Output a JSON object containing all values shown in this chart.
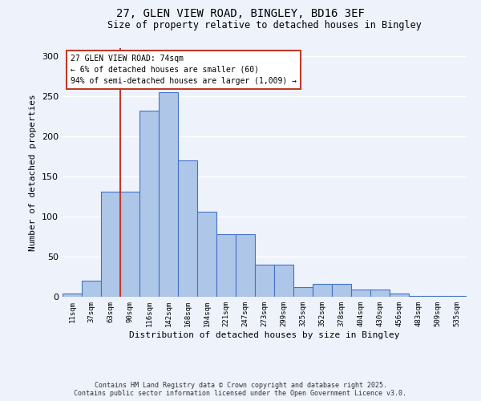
{
  "title_line1": "27, GLEN VIEW ROAD, BINGLEY, BD16 3EF",
  "title_line2": "Size of property relative to detached houses in Bingley",
  "xlabel": "Distribution of detached houses by size in Bingley",
  "ylabel": "Number of detached properties",
  "categories": [
    "11sqm",
    "37sqm",
    "63sqm",
    "90sqm",
    "116sqm",
    "142sqm",
    "168sqm",
    "194sqm",
    "221sqm",
    "247sqm",
    "273sqm",
    "299sqm",
    "325sqm",
    "352sqm",
    "378sqm",
    "404sqm",
    "430sqm",
    "456sqm",
    "483sqm",
    "509sqm",
    "535sqm"
  ],
  "values": [
    4,
    20,
    131,
    131,
    232,
    255,
    170,
    106,
    78,
    78,
    40,
    40,
    12,
    16,
    16,
    9,
    9,
    4,
    1,
    1,
    1
  ],
  "bar_color": "#aec6e8",
  "bar_edge_color": "#4472c4",
  "vline_color": "#c0392b",
  "vline_pos": 2.5,
  "annotation_text": "27 GLEN VIEW ROAD: 74sqm\n← 6% of detached houses are smaller (60)\n94% of semi-detached houses are larger (1,009) →",
  "annotation_box_color": "#ffffff",
  "annotation_box_edge_color": "#c0392b",
  "background_color": "#eef2fb",
  "grid_color": "#ffffff",
  "ylim": [
    0,
    310
  ],
  "yticks": [
    0,
    50,
    100,
    150,
    200,
    250,
    300
  ],
  "footer_line1": "Contains HM Land Registry data © Crown copyright and database right 2025.",
  "footer_line2": "Contains public sector information licensed under the Open Government Licence v3.0."
}
